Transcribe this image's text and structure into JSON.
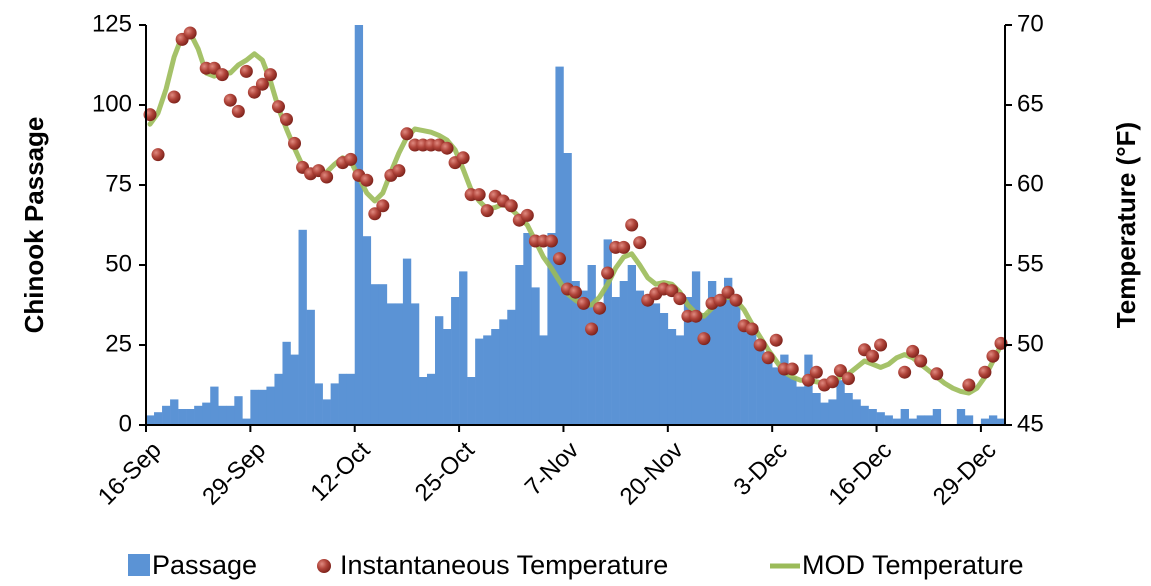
{
  "chart_data": {
    "type": "bar",
    "y_label": "Chinook Passage",
    "y2_label": "Temperature (°F)",
    "categories": [
      "16-Sep",
      null,
      null,
      null,
      null,
      null,
      null,
      null,
      null,
      null,
      null,
      null,
      null,
      "29-Sep",
      null,
      null,
      null,
      null,
      null,
      null,
      null,
      null,
      null,
      null,
      null,
      null,
      "12-Oct",
      null,
      null,
      null,
      null,
      null,
      null,
      null,
      null,
      null,
      null,
      null,
      null,
      "25-Oct",
      null,
      null,
      null,
      null,
      null,
      null,
      null,
      null,
      null,
      null,
      null,
      null,
      "7-Nov",
      null,
      null,
      null,
      null,
      null,
      null,
      null,
      null,
      null,
      null,
      null,
      null,
      "20-Nov",
      null,
      null,
      null,
      null,
      null,
      null,
      null,
      null,
      null,
      null,
      null,
      null,
      "3-Dec",
      null,
      null,
      null,
      null,
      null,
      null,
      null,
      null,
      null,
      null,
      null,
      null,
      "16-Dec",
      null,
      null,
      null,
      null,
      null,
      null,
      null,
      null,
      null,
      null,
      null,
      null,
      "29-Dec",
      null,
      null
    ],
    "series": [
      {
        "name": "Passage",
        "type": "bar",
        "color": "#5b93d5",
        "values": [
          3,
          4,
          6,
          8,
          5,
          5,
          6,
          7,
          12,
          6,
          6,
          9,
          2,
          11,
          11,
          12,
          16,
          26,
          22,
          61,
          36,
          13,
          8,
          13,
          16,
          16,
          125,
          59,
          44,
          44,
          38,
          38,
          52,
          38,
          15,
          16,
          34,
          30,
          40,
          48,
          15,
          27,
          28,
          30,
          33,
          36,
          50,
          60,
          43,
          28,
          60,
          112,
          85,
          45,
          42,
          50,
          35,
          58,
          40,
          45,
          50,
          42,
          40,
          38,
          35,
          30,
          28,
          40,
          48,
          35,
          45,
          40,
          46,
          40,
          32,
          30,
          25,
          20,
          18,
          22,
          15,
          12,
          22,
          10,
          7,
          8,
          14,
          10,
          8,
          6,
          5,
          4,
          3,
          2,
          5,
          2,
          3,
          3,
          5,
          0,
          0,
          5,
          3,
          0,
          2,
          3,
          2
        ]
      },
      {
        "name": "Instantaneous Temperature",
        "type": "scatter",
        "axis": "y2",
        "color": "#a8362c",
        "values": [
          64.4,
          61.9,
          null,
          65.5,
          69.1,
          69.5,
          null,
          67.3,
          67.3,
          66.9,
          65.3,
          64.6,
          67.1,
          65.8,
          66.3,
          66.9,
          64.9,
          64.1,
          62.6,
          61.1,
          60.7,
          60.9,
          60.5,
          null,
          61.4,
          61.6,
          60.6,
          60.3,
          58.2,
          58.7,
          60.6,
          60.9,
          63.2,
          62.5,
          62.5,
          62.5,
          62.5,
          62.3,
          61.4,
          61.7,
          59.4,
          59.4,
          58.4,
          59.3,
          59.0,
          58.7,
          57.8,
          58.1,
          56.5,
          56.5,
          56.5,
          55.4,
          53.5,
          53.3,
          52.6,
          51.0,
          52.3,
          54.5,
          56.1,
          56.1,
          57.5,
          56.4,
          52.8,
          53.2,
          53.5,
          53.4,
          52.9,
          51.8,
          51.8,
          50.4,
          52.6,
          52.8,
          53.3,
          52.8,
          51.2,
          51.0,
          50.0,
          49.2,
          50.3,
          48.5,
          48.5,
          null,
          47.8,
          48.3,
          47.5,
          47.7,
          48.4,
          47.9,
          null,
          49.7,
          49.3,
          50.0,
          null,
          null,
          48.3,
          49.6,
          49.0,
          null,
          48.2,
          null,
          null,
          null,
          47.5,
          null,
          48.3,
          49.3,
          50.1
        ]
      },
      {
        "name": "MOD Temperature",
        "type": "line",
        "axis": "y2",
        "color": "#9bbb59",
        "values": [
          63.8,
          64.5,
          66,
          68,
          69.3,
          69.5,
          68.5,
          67,
          66.8,
          67,
          67,
          67.5,
          67.8,
          68.2,
          67.8,
          66.5,
          64.8,
          63.5,
          62.3,
          61.2,
          60.8,
          60.7,
          60.8,
          61.3,
          61.7,
          61.5,
          60.5,
          59.5,
          59,
          59.5,
          60.8,
          62,
          63,
          63.5,
          63.4,
          63.3,
          63.1,
          62.8,
          62.2,
          61,
          59.7,
          59,
          58.5,
          58.6,
          58.8,
          58.5,
          58,
          57.5,
          56.5,
          55.5,
          54.8,
          54,
          53.2,
          52.8,
          52.5,
          52.5,
          53,
          53.8,
          54.8,
          55.5,
          55.7,
          55,
          54.2,
          53.8,
          53.9,
          53.8,
          53.3,
          52.5,
          52,
          51.8,
          52.3,
          52.8,
          53,
          52.8,
          52.2,
          51.3,
          50.5,
          49.7,
          49,
          48.3,
          48,
          47.8,
          47.8,
          47.7,
          47.6,
          47.7,
          48,
          48.2,
          48.6,
          49,
          48.8,
          48.6,
          48.8,
          49.2,
          49.4,
          49.2,
          48.8,
          48.4,
          48,
          47.6,
          47.3,
          47.1,
          47,
          47.3,
          48,
          49,
          50
        ]
      }
    ],
    "ylim": [
      0,
      125
    ],
    "yticks": [
      0,
      25,
      50,
      75,
      100,
      125
    ],
    "y2lim": [
      45,
      70
    ],
    "y2ticks": [
      45,
      50,
      55,
      60,
      65,
      70
    ],
    "grid": false,
    "legend": "bottom"
  }
}
